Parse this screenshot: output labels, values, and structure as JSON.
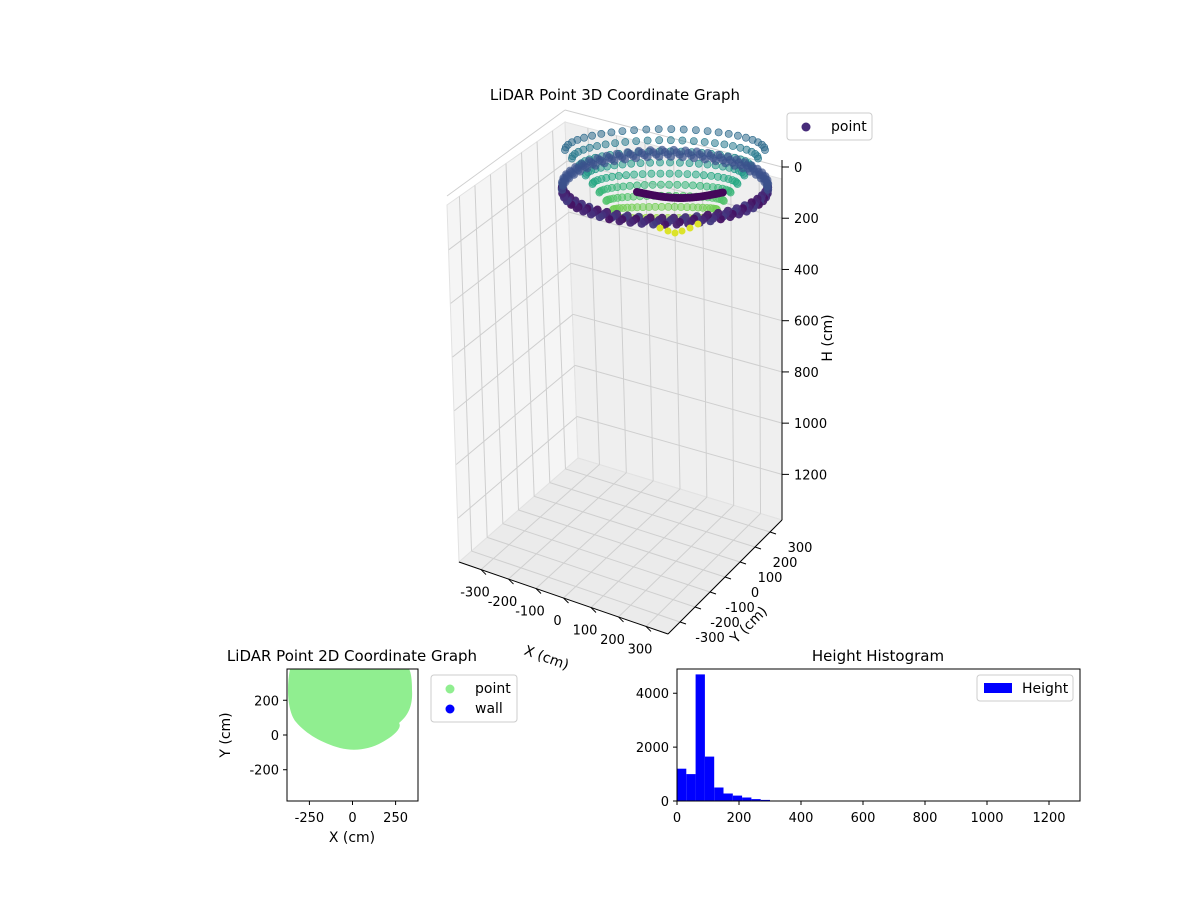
{
  "chart_data": [
    {
      "id": "lidar3d",
      "type": "scatter",
      "title": "LiDAR Point 3D Coordinate Graph",
      "xlabel": "X (cm)",
      "ylabel": "Y (cm)",
      "zlabel": "H (cm)",
      "xlim": [
        -380,
        380
      ],
      "ylim": [
        -380,
        380
      ],
      "zlim": [
        0,
        1300
      ],
      "z_inverted": true,
      "xticks": [
        -300,
        -200,
        -100,
        0,
        100,
        200,
        300
      ],
      "yticks": [
        -300,
        -200,
        -100,
        0,
        100,
        200,
        300
      ],
      "zticks": [
        0,
        200,
        400,
        600,
        800,
        1000,
        1200
      ],
      "colormap": "viridis",
      "legend": {
        "entries": [
          "point"
        ],
        "placement": "top-right"
      },
      "series": [
        {
          "name": "point",
          "description_shape": "bowl-shaped scan: spokes of points from an outer rim toward a center region, plus a dense ring",
          "rings": {
            "rim_radius_x": 250,
            "rim_radius_y": 300,
            "rim_h": 60,
            "inner_h": 230,
            "spokes": 26
          }
        }
      ]
    },
    {
      "id": "lidar2d",
      "type": "scatter",
      "title": "LiDAR Point 2D Coordinate Graph",
      "xlabel": "X (cm)",
      "ylabel": "Y (cm)",
      "xlim": [
        -380,
        380
      ],
      "ylim": [
        -380,
        380
      ],
      "xticks": [
        -250,
        0,
        250
      ],
      "yticks": [
        -200,
        0,
        200
      ],
      "legend": {
        "entries": [
          "point",
          "wall"
        ],
        "placement": "outside-right"
      },
      "colors": {
        "point": "#90ee90",
        "wall": "#0000ff"
      }
    },
    {
      "id": "hist",
      "type": "bar",
      "title": "Height Histogram",
      "xlim": [
        0,
        1300
      ],
      "ylim": [
        0,
        4900
      ],
      "xticks": [
        0,
        200,
        400,
        600,
        800,
        1000,
        1200
      ],
      "yticks": [
        0,
        2000,
        4000
      ],
      "bin_edges": [
        0,
        30,
        60,
        90,
        120,
        150,
        180,
        210,
        240,
        270,
        300,
        330,
        360,
        390
      ],
      "values": [
        1200,
        1000,
        4700,
        1650,
        500,
        280,
        200,
        130,
        70,
        40,
        20,
        10,
        5
      ],
      "legend": {
        "entries": [
          "Height"
        ],
        "placement": "top-right"
      },
      "colors": {
        "bar": "#0000ff"
      }
    }
  ]
}
